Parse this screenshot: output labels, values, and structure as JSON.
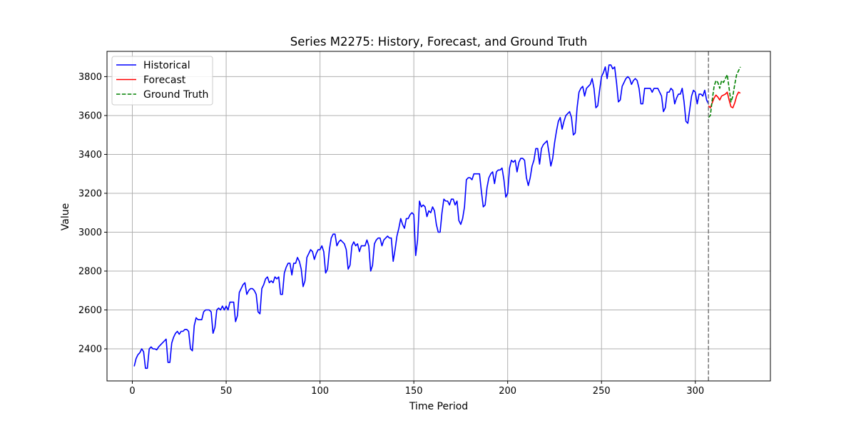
{
  "chart_data": {
    "type": "line",
    "title": "Series M2275: History, Forecast, and Ground Truth",
    "xlabel": "Time Period",
    "ylabel": "Value",
    "xlim": [
      -13.5,
      340
    ],
    "ylim": [
      2235,
      3930
    ],
    "x_ticks": [
      0,
      50,
      100,
      150,
      200,
      250,
      300
    ],
    "y_ticks": [
      2400,
      2600,
      2800,
      3000,
      3200,
      3400,
      3600,
      3800
    ],
    "grid": true,
    "legend_position": "top-left",
    "forecast_start_marker_x": 307,
    "colors": {
      "historical": "#0000ff",
      "forecast": "#ff0000",
      "ground_truth": "#008000",
      "marker": "#808080",
      "grid": "#b0b0b0"
    },
    "series": [
      {
        "name": "Historical",
        "style": "solid",
        "x_start": 1,
        "values": [
          2310,
          2350,
          2370,
          2380,
          2400,
          2385,
          2300,
          2300,
          2400,
          2410,
          2400,
          2400,
          2395,
          2410,
          2420,
          2430,
          2440,
          2450,
          2330,
          2330,
          2430,
          2460,
          2480,
          2490,
          2475,
          2490,
          2490,
          2500,
          2500,
          2490,
          2400,
          2390,
          2520,
          2560,
          2550,
          2550,
          2550,
          2590,
          2600,
          2600,
          2600,
          2590,
          2480,
          2510,
          2600,
          2610,
          2600,
          2620,
          2600,
          2620,
          2600,
          2640,
          2640,
          2640,
          2540,
          2570,
          2690,
          2710,
          2730,
          2740,
          2680,
          2700,
          2710,
          2710,
          2700,
          2680,
          2590,
          2580,
          2710,
          2730,
          2760,
          2770,
          2740,
          2750,
          2740,
          2770,
          2760,
          2770,
          2680,
          2680,
          2790,
          2820,
          2840,
          2840,
          2780,
          2840,
          2840,
          2870,
          2850,
          2810,
          2720,
          2750,
          2870,
          2890,
          2910,
          2900,
          2860,
          2890,
          2910,
          2910,
          2930,
          2900,
          2790,
          2810,
          2910,
          2970,
          2990,
          2990,
          2930,
          2950,
          2960,
          2950,
          2940,
          2910,
          2810,
          2830,
          2930,
          2950,
          2930,
          2940,
          2900,
          2930,
          2930,
          2930,
          2960,
          2930,
          2800,
          2830,
          2940,
          2960,
          2970,
          2970,
          2930,
          2960,
          2970,
          2980,
          2970,
          2970,
          2850,
          2910,
          2980,
          3020,
          3070,
          3040,
          3020,
          3070,
          3070,
          3090,
          3100,
          3090,
          2880,
          2960,
          3160,
          3130,
          3140,
          3130,
          3080,
          3110,
          3100,
          3130,
          3110,
          3040,
          3000,
          3000,
          3100,
          3170,
          3160,
          3160,
          3140,
          3170,
          3170,
          3140,
          3160,
          3060,
          3040,
          3070,
          3130,
          3270,
          3280,
          3280,
          3270,
          3300,
          3300,
          3300,
          3300,
          3210,
          3130,
          3140,
          3230,
          3280,
          3300,
          3310,
          3250,
          3310,
          3320,
          3320,
          3330,
          3270,
          3180,
          3200,
          3330,
          3370,
          3360,
          3370,
          3310,
          3360,
          3380,
          3380,
          3370,
          3280,
          3240,
          3280,
          3340,
          3370,
          3430,
          3430,
          3350,
          3430,
          3450,
          3460,
          3470,
          3410,
          3340,
          3380,
          3460,
          3520,
          3570,
          3590,
          3530,
          3570,
          3600,
          3610,
          3620,
          3590,
          3500,
          3510,
          3640,
          3720,
          3740,
          3750,
          3700,
          3740,
          3750,
          3760,
          3790,
          3740,
          3640,
          3650,
          3730,
          3800,
          3820,
          3850,
          3790,
          3860,
          3860,
          3840,
          3850,
          3770,
          3670,
          3680,
          3750,
          3770,
          3790,
          3800,
          3790,
          3760,
          3780,
          3790,
          3780,
          3740,
          3660,
          3660,
          3740,
          3740,
          3740,
          3740,
          3720,
          3740,
          3740,
          3740,
          3720,
          3700,
          3620,
          3640,
          3720,
          3720,
          3740,
          3730,
          3660,
          3690,
          3710,
          3710,
          3740,
          3670,
          3570,
          3560,
          3630,
          3700,
          3730,
          3720,
          3660,
          3710,
          3710,
          3700,
          3730,
          3680,
          3660
        ]
      },
      {
        "name": "Forecast",
        "style": "solid",
        "x_start": 307,
        "values": [
          3650,
          3640,
          3665,
          3690,
          3705,
          3695,
          3680,
          3700,
          3705,
          3710,
          3720,
          3680,
          3645,
          3640,
          3665,
          3700,
          3720,
          3715
        ]
      },
      {
        "name": "Ground Truth",
        "style": "dashed",
        "x_start": 307,
        "values": [
          3590,
          3600,
          3680,
          3750,
          3780,
          3770,
          3740,
          3780,
          3770,
          3790,
          3810,
          3740,
          3670,
          3700,
          3760,
          3810,
          3830,
          3850
        ]
      }
    ]
  }
}
